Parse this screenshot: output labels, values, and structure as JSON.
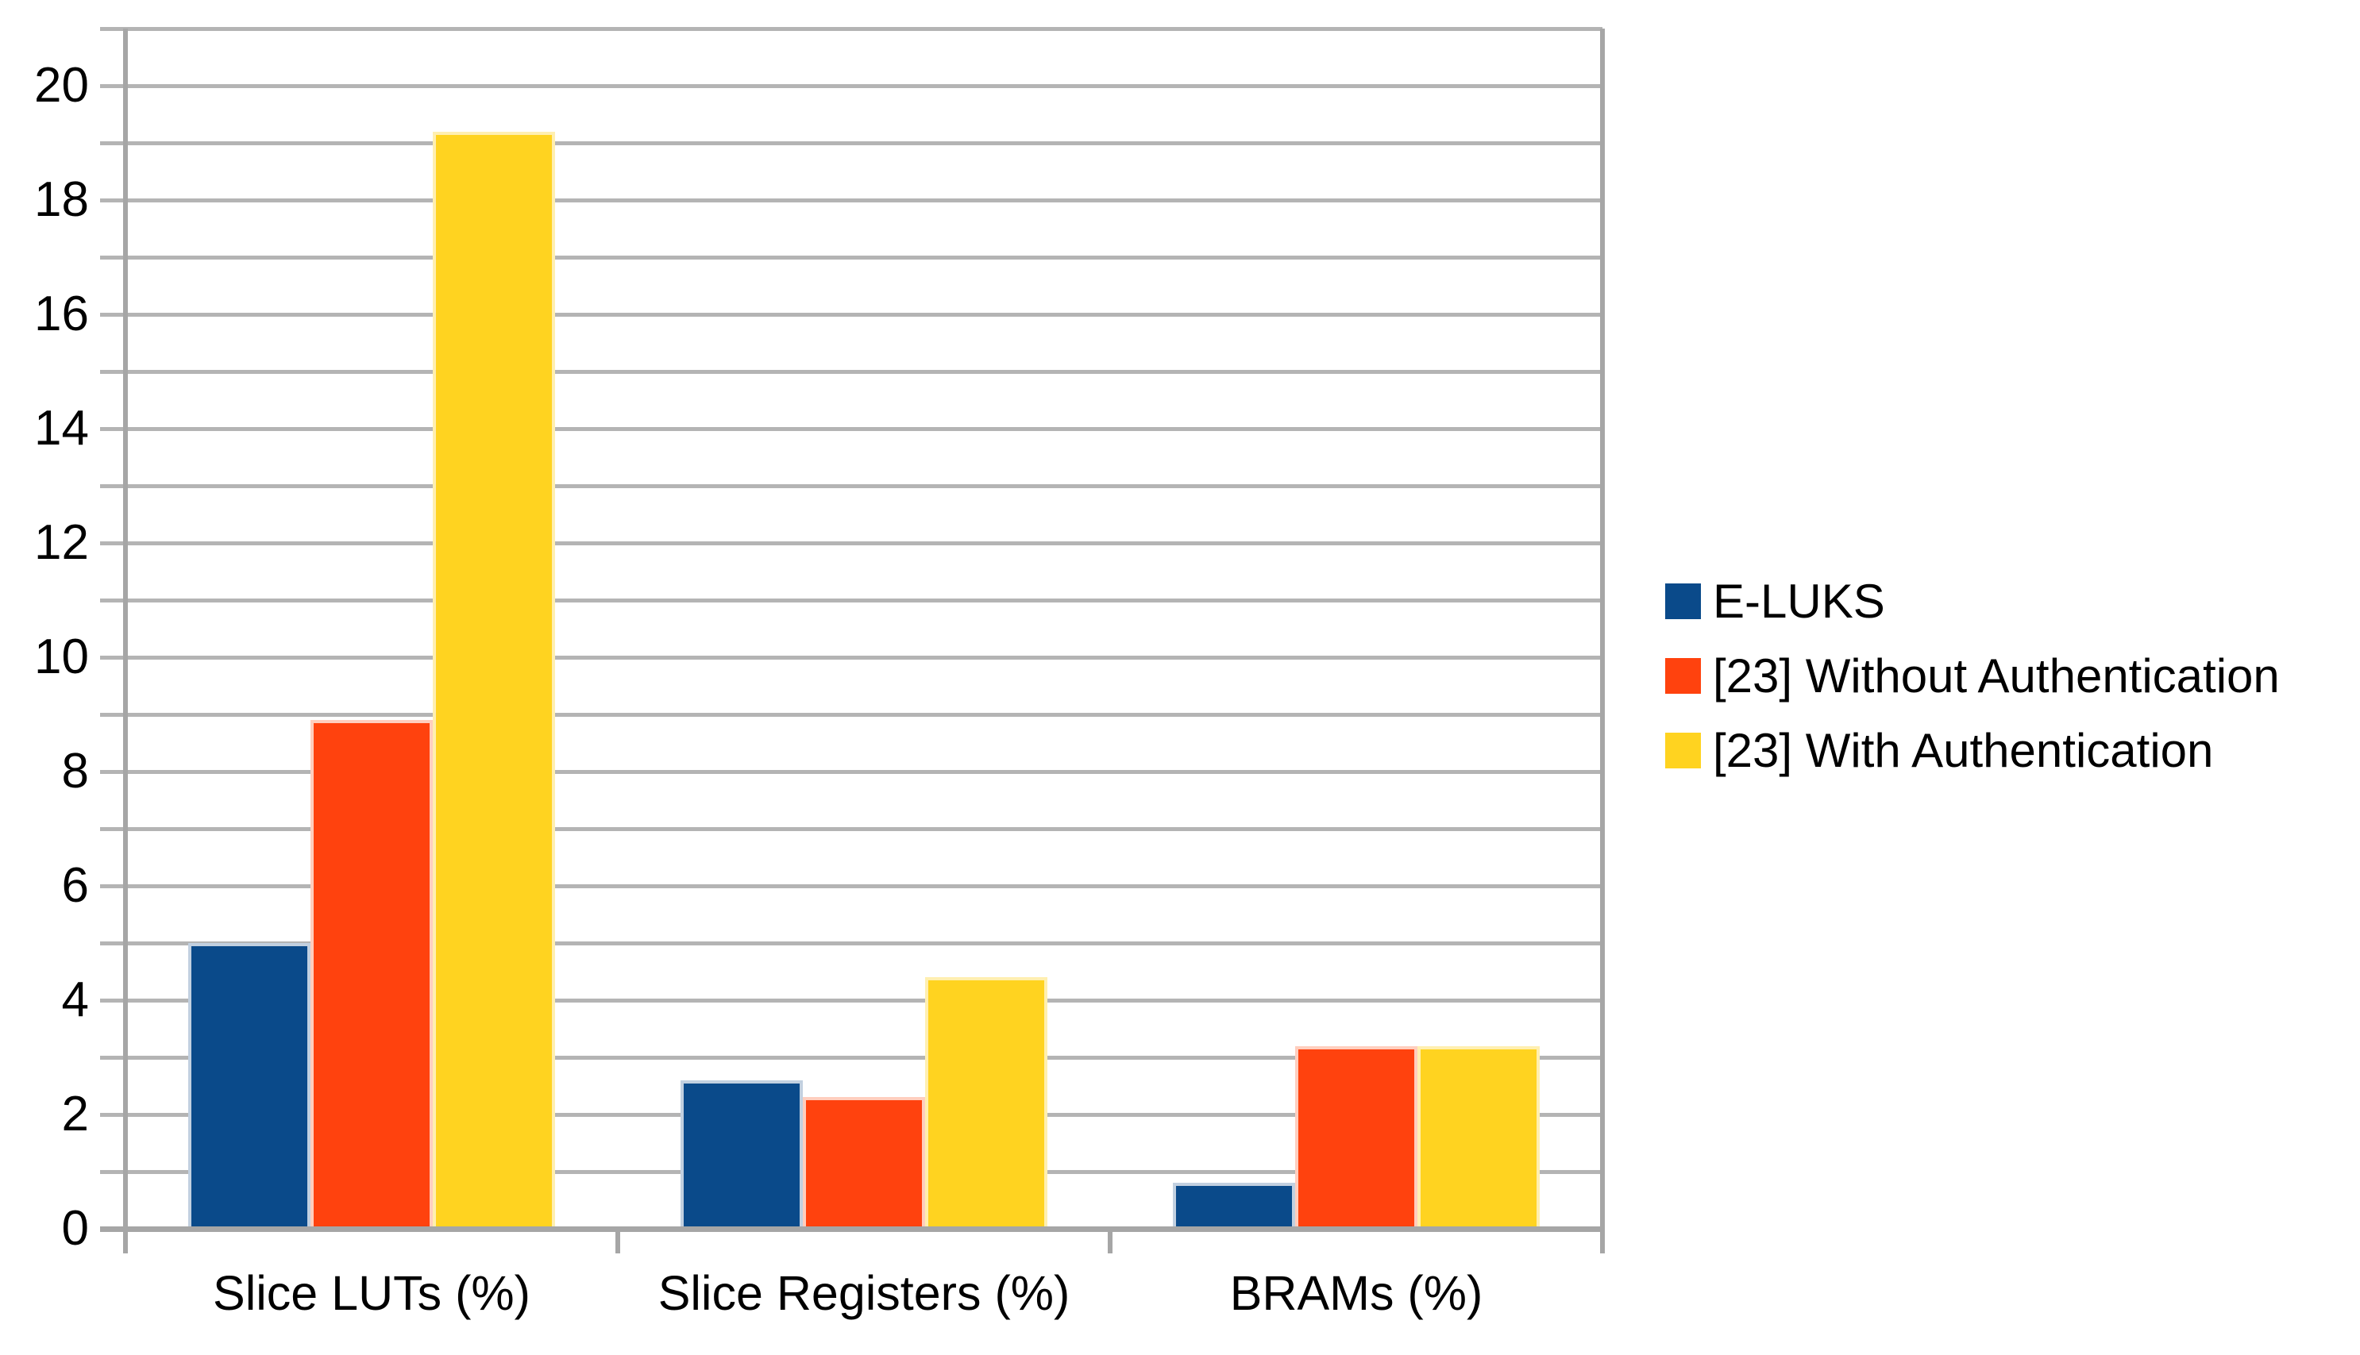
{
  "chart_data": {
    "type": "bar",
    "categories": [
      "Slice LUTs (%)",
      "Slice Registers (%)",
      "BRAMs (%)"
    ],
    "series": [
      {
        "name": "E-LUKS",
        "color": "#0A4A8A",
        "edge_color": "#C2D0E0",
        "values": [
          5.0,
          2.6,
          0.8
        ]
      },
      {
        "name": "[23] Without Authentication",
        "color": "#FF420E",
        "edge_color": "#FFCEBE",
        "values": [
          8.9,
          2.3,
          3.2
        ]
      },
      {
        "name": "[23] With Authentication",
        "color": "#FFD320",
        "edge_color": "#FFEFB0",
        "values": [
          19.2,
          4.4,
          3.2
        ]
      }
    ],
    "ylim": [
      0,
      21
    ],
    "y_major_tick_interval": 2,
    "y_gridline_interval": 1,
    "y_tick_labels": [
      "0",
      "2",
      "4",
      "6",
      "8",
      "10",
      "12",
      "14",
      "16",
      "18",
      "20"
    ],
    "xlabel": "",
    "ylabel": "",
    "grid": true,
    "legend_position": "right",
    "background_color": "#FFFFFF",
    "gridline_color": "#B4B4B4",
    "axis_color": "#A6A6A6",
    "text_color": "#000000"
  }
}
